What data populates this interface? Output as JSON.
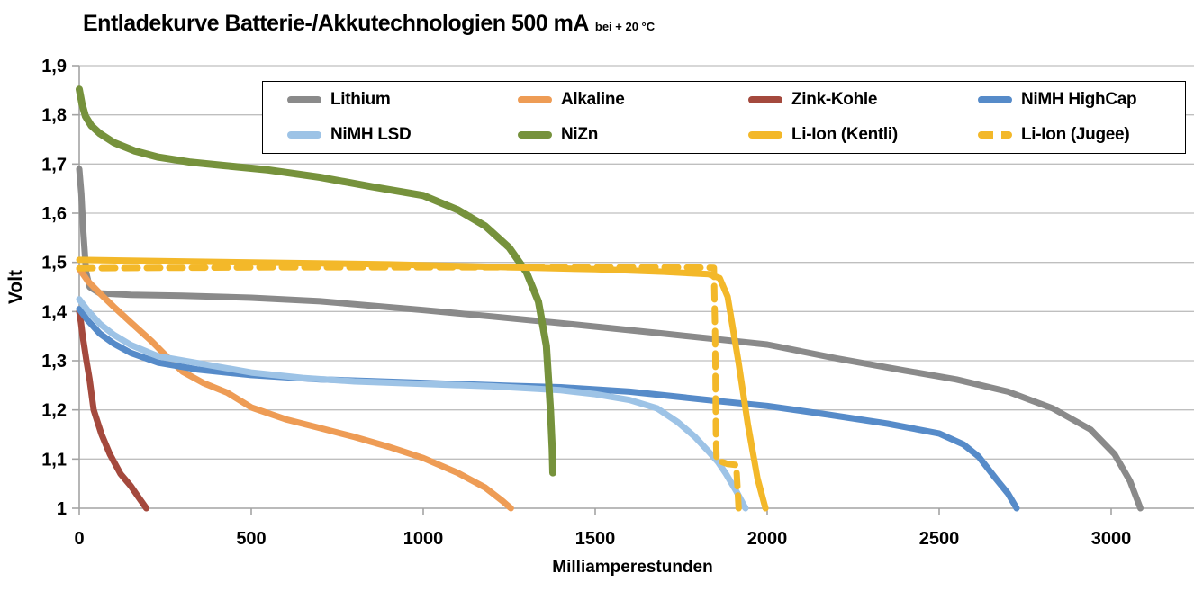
{
  "title": {
    "main": "Entladekurve Batterie-/Akkutechnologien 500 mA",
    "suffix": "bei + 20 °C"
  },
  "axes": {
    "x_label": "Milliamperestunden",
    "y_label": "Volt"
  },
  "colors": {
    "grid": "#bfbfbf",
    "axis": "#a3a3a3",
    "tick": "#a3a3a3",
    "text": "#000000",
    "background": "#ffffff",
    "legend_border": "#000000"
  },
  "chart_data": {
    "type": "line",
    "title": "Entladekurve Batterie-/Akkutechnologien 500 mA bei + 20 °C",
    "xlabel": "Milliamperestunden",
    "ylabel": "Volt",
    "xlim": [
      0,
      3240
    ],
    "ylim": [
      1.0,
      1.9
    ],
    "grid": "horizontal-only",
    "legend_position": "top-inside",
    "x_ticks": [
      {
        "value": 0,
        "label": "0"
      },
      {
        "value": 500,
        "label": "500"
      },
      {
        "value": 1000,
        "label": "1000"
      },
      {
        "value": 1500,
        "label": "1500"
      },
      {
        "value": 2000,
        "label": "2000"
      },
      {
        "value": 2500,
        "label": "2500"
      },
      {
        "value": 3000,
        "label": "3000"
      }
    ],
    "y_ticks": [
      {
        "value": 1.0,
        "label": "1"
      },
      {
        "value": 1.1,
        "label": "1,1"
      },
      {
        "value": 1.2,
        "label": "1,2"
      },
      {
        "value": 1.3,
        "label": "1,3"
      },
      {
        "value": 1.4,
        "label": "1,4"
      },
      {
        "value": 1.5,
        "label": "1,5"
      },
      {
        "value": 1.6,
        "label": "1,6"
      },
      {
        "value": 1.7,
        "label": "1,7"
      },
      {
        "value": 1.8,
        "label": "1,8"
      },
      {
        "value": 1.9,
        "label": "1,9"
      }
    ],
    "series": [
      {
        "name": "Lithium",
        "color": "#8a8a8a",
        "dashed": false,
        "width": 7,
        "points": [
          [
            0,
            1.69
          ],
          [
            6,
            1.64
          ],
          [
            12,
            1.56
          ],
          [
            20,
            1.48
          ],
          [
            30,
            1.45
          ],
          [
            60,
            1.437
          ],
          [
            150,
            1.434
          ],
          [
            300,
            1.432
          ],
          [
            500,
            1.428
          ],
          [
            700,
            1.421
          ],
          [
            1000,
            1.403
          ],
          [
            1200,
            1.39
          ],
          [
            1450,
            1.373
          ],
          [
            1700,
            1.355
          ],
          [
            2000,
            1.333
          ],
          [
            2200,
            1.305
          ],
          [
            2400,
            1.28
          ],
          [
            2550,
            1.262
          ],
          [
            2700,
            1.237
          ],
          [
            2830,
            1.203
          ],
          [
            2940,
            1.16
          ],
          [
            3010,
            1.11
          ],
          [
            3055,
            1.055
          ],
          [
            3085,
            1.0
          ]
        ]
      },
      {
        "name": "Alkaline",
        "color": "#ee9c55",
        "dashed": false,
        "width": 7,
        "points": [
          [
            0,
            1.487
          ],
          [
            25,
            1.462
          ],
          [
            60,
            1.437
          ],
          [
            100,
            1.41
          ],
          [
            150,
            1.378
          ],
          [
            210,
            1.34
          ],
          [
            260,
            1.305
          ],
          [
            300,
            1.278
          ],
          [
            360,
            1.255
          ],
          [
            430,
            1.235
          ],
          [
            500,
            1.205
          ],
          [
            600,
            1.181
          ],
          [
            700,
            1.163
          ],
          [
            800,
            1.145
          ],
          [
            900,
            1.125
          ],
          [
            1000,
            1.102
          ],
          [
            1100,
            1.072
          ],
          [
            1180,
            1.042
          ],
          [
            1230,
            1.015
          ],
          [
            1255,
            1.0
          ]
        ]
      },
      {
        "name": "Zink-Kohle",
        "color": "#a4493d",
        "dashed": false,
        "width": 7,
        "points": [
          [
            0,
            1.4
          ],
          [
            5,
            1.378
          ],
          [
            10,
            1.35
          ],
          [
            21,
            1.3
          ],
          [
            30,
            1.262
          ],
          [
            42,
            1.2
          ],
          [
            65,
            1.15
          ],
          [
            89,
            1.11
          ],
          [
            120,
            1.07
          ],
          [
            150,
            1.045
          ],
          [
            175,
            1.02
          ],
          [
            195,
            1.0
          ]
        ]
      },
      {
        "name": "NiMH HighCap",
        "color": "#568bc9",
        "dashed": false,
        "width": 7,
        "points": [
          [
            0,
            1.405
          ],
          [
            25,
            1.382
          ],
          [
            60,
            1.355
          ],
          [
            100,
            1.335
          ],
          [
            150,
            1.316
          ],
          [
            230,
            1.296
          ],
          [
            345,
            1.282
          ],
          [
            500,
            1.271
          ],
          [
            700,
            1.262
          ],
          [
            1000,
            1.255
          ],
          [
            1250,
            1.249
          ],
          [
            1400,
            1.246
          ],
          [
            1600,
            1.237
          ],
          [
            1870,
            1.217
          ],
          [
            2000,
            1.208
          ],
          [
            2180,
            1.19
          ],
          [
            2350,
            1.172
          ],
          [
            2500,
            1.152
          ],
          [
            2570,
            1.13
          ],
          [
            2615,
            1.105
          ],
          [
            2665,
            1.06
          ],
          [
            2700,
            1.03
          ],
          [
            2725,
            1.0
          ]
        ]
      },
      {
        "name": "NiMH LSD",
        "color": "#9dc3e6",
        "dashed": false,
        "width": 7,
        "points": [
          [
            0,
            1.425
          ],
          [
            25,
            1.402
          ],
          [
            60,
            1.375
          ],
          [
            100,
            1.353
          ],
          [
            150,
            1.332
          ],
          [
            230,
            1.309
          ],
          [
            345,
            1.295
          ],
          [
            500,
            1.276
          ],
          [
            650,
            1.265
          ],
          [
            800,
            1.258
          ],
          [
            1000,
            1.253
          ],
          [
            1200,
            1.248
          ],
          [
            1400,
            1.24
          ],
          [
            1500,
            1.232
          ],
          [
            1600,
            1.22
          ],
          [
            1680,
            1.203
          ],
          [
            1740,
            1.175
          ],
          [
            1790,
            1.145
          ],
          [
            1830,
            1.115
          ],
          [
            1856,
            1.095
          ],
          [
            1880,
            1.07
          ],
          [
            1910,
            1.035
          ],
          [
            1937,
            1.0
          ]
        ]
      },
      {
        "name": "NiZn",
        "color": "#76923c",
        "dashed": false,
        "width": 8,
        "points": [
          [
            0,
            1.852
          ],
          [
            8,
            1.822
          ],
          [
            18,
            1.797
          ],
          [
            35,
            1.778
          ],
          [
            60,
            1.762
          ],
          [
            100,
            1.744
          ],
          [
            160,
            1.727
          ],
          [
            230,
            1.714
          ],
          [
            320,
            1.704
          ],
          [
            420,
            1.697
          ],
          [
            550,
            1.688
          ],
          [
            700,
            1.673
          ],
          [
            850,
            1.654
          ],
          [
            1000,
            1.636
          ],
          [
            1100,
            1.607
          ],
          [
            1180,
            1.574
          ],
          [
            1250,
            1.53
          ],
          [
            1300,
            1.48
          ],
          [
            1335,
            1.42
          ],
          [
            1358,
            1.33
          ],
          [
            1370,
            1.2
          ],
          [
            1375,
            1.12
          ],
          [
            1377,
            1.072
          ]
        ]
      },
      {
        "name": "Li-Ion (Kentli)",
        "color": "#f3b829",
        "dashed": false,
        "width": 7,
        "points": [
          [
            0,
            1.505
          ],
          [
            300,
            1.502
          ],
          [
            600,
            1.499
          ],
          [
            900,
            1.496
          ],
          [
            1200,
            1.491
          ],
          [
            1500,
            1.486
          ],
          [
            1700,
            1.481
          ],
          [
            1830,
            1.476
          ],
          [
            1862,
            1.468
          ],
          [
            1885,
            1.43
          ],
          [
            1916,
            1.3
          ],
          [
            1944,
            1.17
          ],
          [
            1972,
            1.06
          ],
          [
            1995,
            1.0
          ]
        ]
      },
      {
        "name": "Li-Ion (Jugee)",
        "color": "#f3b829",
        "dashed": true,
        "width": 7,
        "points": [
          [
            0,
            1.488
          ],
          [
            300,
            1.489
          ],
          [
            600,
            1.49
          ],
          [
            900,
            1.49
          ],
          [
            1200,
            1.49
          ],
          [
            1500,
            1.49
          ],
          [
            1700,
            1.49
          ],
          [
            1845,
            1.489
          ],
          [
            1849,
            1.35
          ],
          [
            1851,
            1.15
          ],
          [
            1853,
            1.098
          ],
          [
            1885,
            1.09
          ],
          [
            1910,
            1.088
          ],
          [
            1914,
            1.04
          ],
          [
            1917,
            1.0
          ]
        ]
      }
    ]
  }
}
